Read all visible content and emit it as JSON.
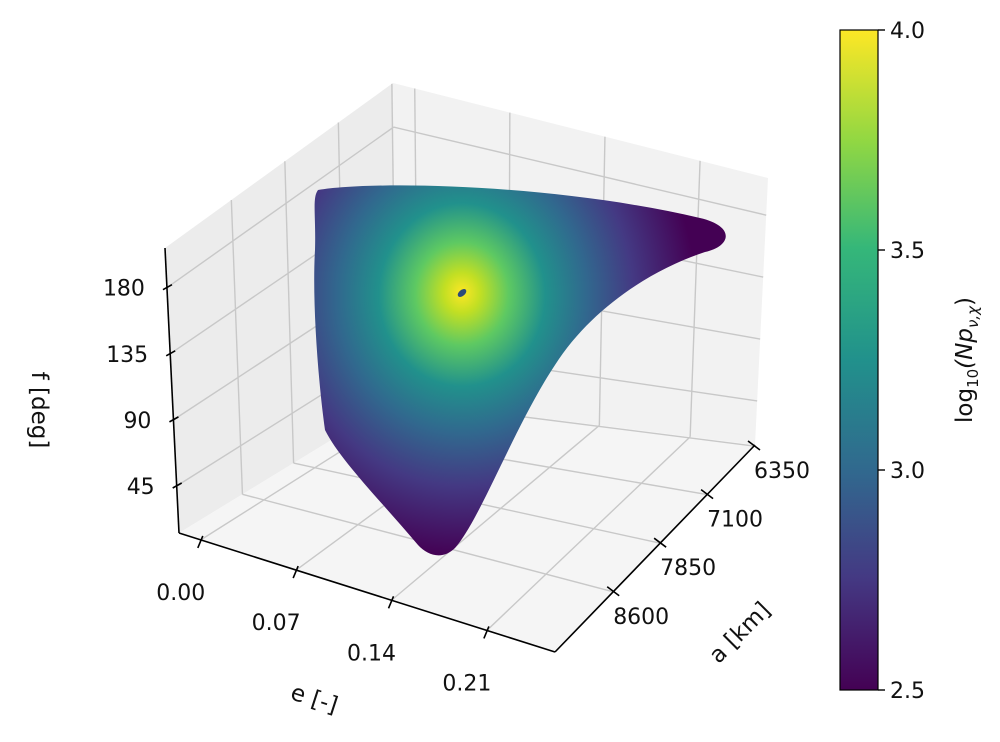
{
  "chart_data": {
    "type": "scatter3d",
    "title": "",
    "xlabel": "e [-]",
    "ylabel": "a [km]",
    "zlabel": "f [deg]",
    "x_ticks": [
      0.0,
      0.07,
      0.14,
      0.21
    ],
    "x_tick_labels": [
      "0.00",
      "0.07",
      "0.14",
      "0.21"
    ],
    "xlim": [
      -0.016,
      0.26
    ],
    "y_ticks": [
      6350,
      7100,
      7850,
      8600
    ],
    "y_tick_labels": [
      "6350",
      "7100",
      "7850",
      "8600"
    ],
    "ylim": [
      9530,
      6334
    ],
    "z_ticks": [
      45,
      90,
      135,
      180
    ],
    "z_tick_labels": [
      "45",
      "90",
      "135",
      "180"
    ],
    "zlim": [
      13,
      207
    ],
    "grid": true,
    "colormap": "viridis",
    "colorbar": {
      "label": "log10(Npν,χ)",
      "label_main": "log",
      "label_sub": "10",
      "label_paren": "(Np",
      "label_subscript": "ν,χ",
      "label_close": ")",
      "range": [
        2.5,
        4.0
      ],
      "ticks": [
        2.5,
        3.0,
        3.5,
        4.0
      ],
      "tick_labels": [
        "2.5",
        "3.0",
        "3.5",
        "4.0"
      ],
      "placement": "right"
    },
    "colors": {
      "viridis": [
        "#440154",
        "#443983",
        "#31688e",
        "#21918c",
        "#35b779",
        "#90d743",
        "#fde725"
      ],
      "pane": "#f2f2f2",
      "grid": "#c8c8c8"
    }
  }
}
